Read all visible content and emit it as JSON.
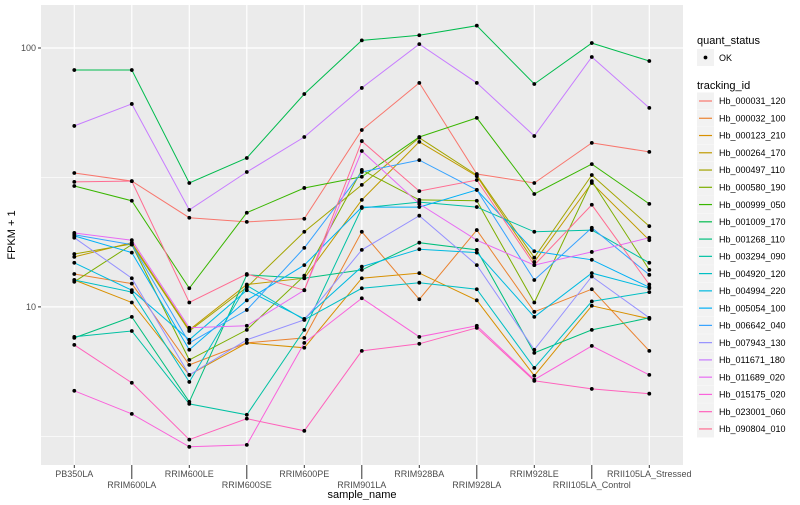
{
  "chart_data": {
    "type": "line",
    "xlabel": "sample_name",
    "ylabel": "FPKM + 1",
    "y_scale": "log10",
    "ylim": [
      2.45,
      146.6
    ],
    "y_ticks": [
      10,
      100
    ],
    "y_tick_labels": [
      "10",
      "100"
    ],
    "y_minor_ticks": [
      3.162,
      31.62
    ],
    "grid": true,
    "legend_position": "right",
    "categories": [
      "PB350LA",
      "RRIM600LA",
      "RRIM600LE",
      "RRIM600SE",
      "RRIM600PE",
      "RRIM901LA",
      "RRIM928BA",
      "RRIM928LA",
      "RRIM928LE",
      "RRII105LA_Control",
      "RRII105LA_Stressed"
    ],
    "shape_legend": {
      "title": "quant_status",
      "items": [
        "OK"
      ]
    },
    "color_legend_title": "tracking_id",
    "series": [
      {
        "name": "Hb_000031_120",
        "color": "#F8766D",
        "values": [
          32.9,
          30.6,
          22.1,
          21.3,
          21.9,
          48.2,
          73.3,
          32.6,
          30.1,
          43.0,
          39.7
        ]
      },
      {
        "name": "Hb_000032_100",
        "color": "#EA8331",
        "values": [
          13.4,
          12.3,
          5.97,
          7.26,
          7.59,
          19.5,
          10.7,
          19.8,
          9.57,
          11.7,
          6.76
        ]
      },
      {
        "name": "Hb_000123_210",
        "color": "#D89000",
        "values": [
          12.7,
          10.4,
          5.46,
          7.26,
          6.95,
          12.9,
          13.5,
          10.6,
          5.42,
          10.1,
          8.99
        ]
      },
      {
        "name": "Hb_000264_170",
        "color": "#C09B00",
        "values": [
          15.6,
          17.7,
          8.15,
          12.2,
          12.9,
          25.9,
          43.4,
          32.0,
          14.9,
          30.1,
          18.1
        ]
      },
      {
        "name": "Hb_000497_110",
        "color": "#A3A500",
        "values": [
          16.0,
          17.5,
          8.07,
          11.9,
          19.5,
          29.6,
          45.0,
          32.3,
          15.5,
          32.3,
          20.5
        ]
      },
      {
        "name": "Hb_000580_190",
        "color": "#7CAE00",
        "values": [
          12.5,
          17.4,
          6.24,
          8.15,
          13.2,
          33.8,
          25.9,
          25.7,
          10.4,
          30.6,
          13.9
        ]
      },
      {
        "name": "Hb_000999_050",
        "color": "#39B600",
        "values": [
          29.3,
          25.7,
          11.8,
          23.1,
          28.8,
          31.8,
          45.3,
          53.7,
          27.3,
          35.6,
          25.0
        ]
      },
      {
        "name": "Hb_001009_170",
        "color": "#00BB4E",
        "values": [
          82.2,
          82.2,
          30.1,
          37.6,
          66.4,
          107,
          112,
          122,
          72.6,
          104.5,
          89.1
        ]
      },
      {
        "name": "Hb_001268_110",
        "color": "#00BF7D",
        "values": [
          7.59,
          9.15,
          4.3,
          13.3,
          12.9,
          13.9,
          17.7,
          16.6,
          6.64,
          8.15,
          9.07
        ]
      },
      {
        "name": "Hb_003294_090",
        "color": "#00C1A3",
        "values": [
          7.66,
          8.07,
          4.22,
          3.83,
          8.15,
          24.1,
          25.4,
          24.3,
          19.5,
          19.8,
          14.8
        ]
      },
      {
        "name": "Hb_004920_120",
        "color": "#00BFC4",
        "values": [
          12.7,
          11.4,
          5.13,
          12.1,
          8.91,
          11.8,
          12.4,
          11.7,
          5.81,
          10.5,
          11.4
        ]
      },
      {
        "name": "Hb_004994_220",
        "color": "#00BAE0",
        "values": [
          14.8,
          11.6,
          7.46,
          11.6,
          8.99,
          14.3,
          16.7,
          16.2,
          9.15,
          13.5,
          11.8
        ]
      },
      {
        "name": "Hb_005054_100",
        "color": "#00B0F6",
        "values": [
          18.8,
          16.2,
          6.83,
          10.6,
          14.5,
          24.3,
          24.3,
          28.3,
          16.4,
          15.2,
          11.9
        ]
      },
      {
        "name": "Hb_006642_040",
        "color": "#35A2FF",
        "values": [
          19.0,
          17.4,
          7.26,
          9.73,
          16.9,
          33.2,
          36.9,
          28.3,
          12.7,
          20.2,
          13.3
        ]
      },
      {
        "name": "Hb_007943_130",
        "color": "#9590FF",
        "values": [
          18.5,
          12.9,
          5.46,
          7.46,
          8.91,
          16.6,
          22.5,
          14.5,
          6.83,
          13.1,
          9.07
        ]
      },
      {
        "name": "Hb_011671_180",
        "color": "#C77CFF",
        "values": [
          50.0,
          60.8,
          23.7,
          33.2,
          45.3,
          70.1,
          103.5,
          73.3,
          45.7,
          92.3,
          58.7
        ]
      },
      {
        "name": "Hb_011689_020",
        "color": "#E76BF3",
        "values": [
          19.3,
          18.1,
          8.3,
          8.45,
          11.6,
          40.0,
          25.0,
          18.1,
          14.5,
          16.3,
          18.5
        ]
      },
      {
        "name": "Hb_015175_020",
        "color": "#FA62DB",
        "values": [
          4.74,
          3.86,
          2.88,
          2.93,
          7.26,
          10.8,
          7.66,
          8.45,
          5.23,
          7.07,
          5.46
        ]
      },
      {
        "name": "Hb_023001_060",
        "color": "#FF62BC",
        "values": [
          7.13,
          5.09,
          3.07,
          3.7,
          3.32,
          6.76,
          7.2,
          8.3,
          5.18,
          4.82,
          4.62
        ]
      },
      {
        "name": "Hb_090804_010",
        "color": "#FF6C91",
        "values": [
          30.4,
          30.6,
          10.4,
          13.4,
          11.6,
          43.7,
          28.0,
          30.9,
          14.5,
          24.8,
          12.2
        ]
      }
    ]
  }
}
